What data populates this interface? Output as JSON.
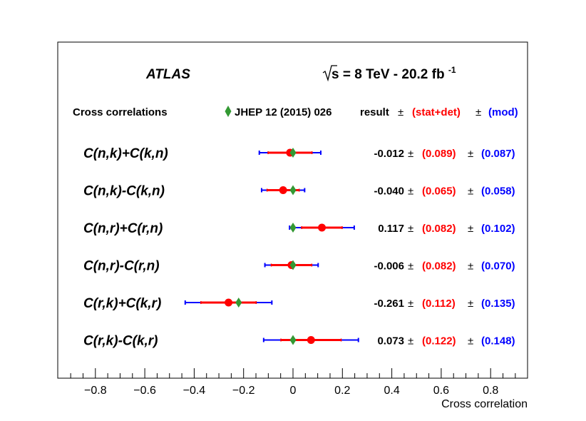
{
  "chart_data": {
    "type": "scatter",
    "experiment": "ATLAS",
    "energy_label": "s = 8 TeV - 20.2 fb",
    "energy_sup": "-1",
    "title": "Cross correlations",
    "reference_label": "JHEP 12 (2015) 026",
    "header": {
      "result": "result",
      "pm": "±",
      "stat": "(stat+det)",
      "mod": "(mod)"
    },
    "xlabel": "Cross correlation",
    "xlim": [
      -0.95,
      0.95
    ],
    "xticks": [
      {
        "v": -0.8,
        "label": "−0.8"
      },
      {
        "v": -0.6,
        "label": "−0.6"
      },
      {
        "v": -0.4,
        "label": "−0.4"
      },
      {
        "v": -0.2,
        "label": "−0.2"
      },
      {
        "v": 0,
        "label": "0"
      },
      {
        "v": 0.2,
        "label": "0.2"
      },
      {
        "v": 0.4,
        "label": "0.4"
      },
      {
        "v": 0.6,
        "label": "0.6"
      },
      {
        "v": 0.8,
        "label": "0.8"
      }
    ],
    "colors": {
      "result": "#ff0000",
      "stat": "#ff0000",
      "mod": "#0000ff",
      "reference": "#339933",
      "text": "#000000"
    },
    "rows": [
      {
        "label": "C(n,k)+C(k,n)",
        "value": -0.012,
        "stat": 0.089,
        "mod": 0.087,
        "ref": 0.0,
        "value_text": "-0.012",
        "stat_text": "(0.089)",
        "mod_text": "(0.087)"
      },
      {
        "label": "C(n,k)-C(k,n)",
        "value": -0.04,
        "stat": 0.065,
        "mod": 0.058,
        "ref": 0.0,
        "value_text": "-0.040",
        "stat_text": "(0.065)",
        "mod_text": "(0.058)"
      },
      {
        "label": "C(n,r)+C(r,n)",
        "value": 0.117,
        "stat": 0.082,
        "mod": 0.102,
        "ref": 0.0,
        "value_text": "0.117",
        "stat_text": "(0.082)",
        "mod_text": "(0.102)"
      },
      {
        "label": "C(n,r)-C(r,n)",
        "value": -0.006,
        "stat": 0.082,
        "mod": 0.07,
        "ref": 0.0,
        "value_text": "-0.006",
        "stat_text": "(0.082)",
        "mod_text": "(0.070)"
      },
      {
        "label": "C(r,k)+C(k,r)",
        "value": -0.261,
        "stat": 0.112,
        "mod": 0.135,
        "ref": -0.22,
        "value_text": "-0.261",
        "stat_text": "(0.112)",
        "mod_text": "(0.135)"
      },
      {
        "label": "C(r,k)-C(k,r)",
        "value": 0.073,
        "stat": 0.122,
        "mod": 0.148,
        "ref": 0.0,
        "value_text": "0.073",
        "stat_text": "(0.122)",
        "mod_text": "(0.148)"
      }
    ]
  }
}
